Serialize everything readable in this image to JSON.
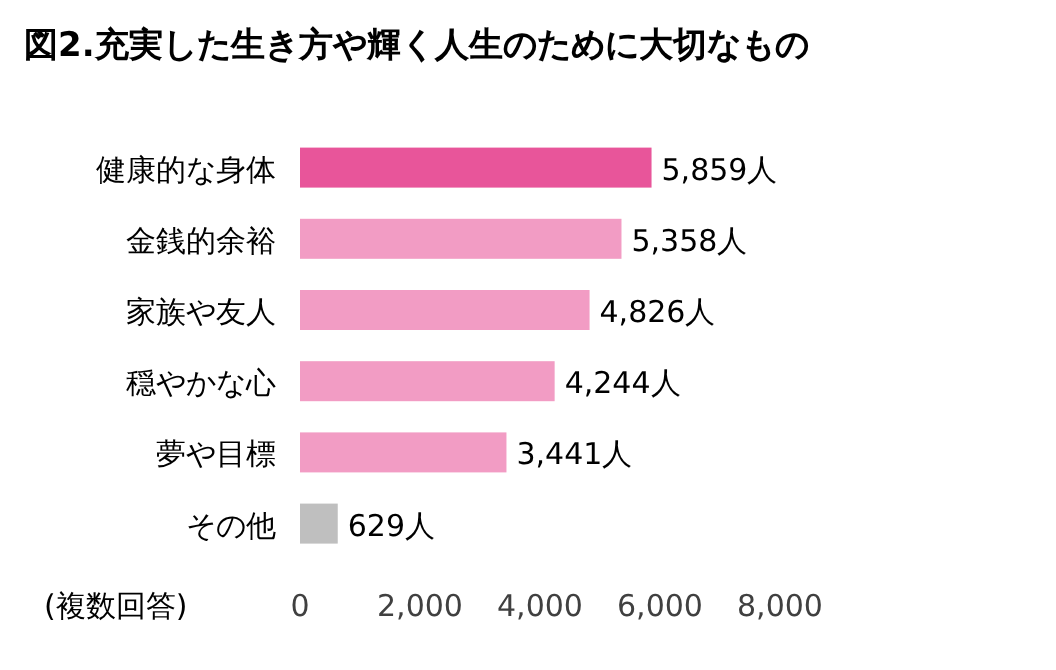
{
  "chart_data": {
    "type": "bar",
    "orientation": "horizontal",
    "title": "図2.充実した生き方や輝く人生のために大切なもの",
    "categories": [
      "健康的な身体",
      "金銭的余裕",
      "家族や友人",
      "穏やかな心",
      "夢や目標",
      "その他"
    ],
    "values": [
      5859,
      5358,
      4826,
      4244,
      3441,
      629
    ],
    "colors": [
      "#e8559a",
      "#f29cc4",
      "#f29cc4",
      "#f29cc4",
      "#f29cc4",
      "#bfbfbf"
    ],
    "value_labels": [
      "5,859人",
      "5,358人",
      "4,826人",
      "4,244人",
      "3,441人",
      "629人"
    ],
    "xlim": [
      0,
      8000
    ],
    "xticks": [
      0,
      {
        "value": 2000,
        "label": "2,000"
      },
      {
        "value": 4000,
        "label": "4,000"
      },
      {
        "value": 6000,
        "label": "6,000"
      },
      {
        "value": 8000,
        "label": "8,000"
      }
    ],
    "annotations": [
      "(複数回答)"
    ],
    "grid": false
  }
}
